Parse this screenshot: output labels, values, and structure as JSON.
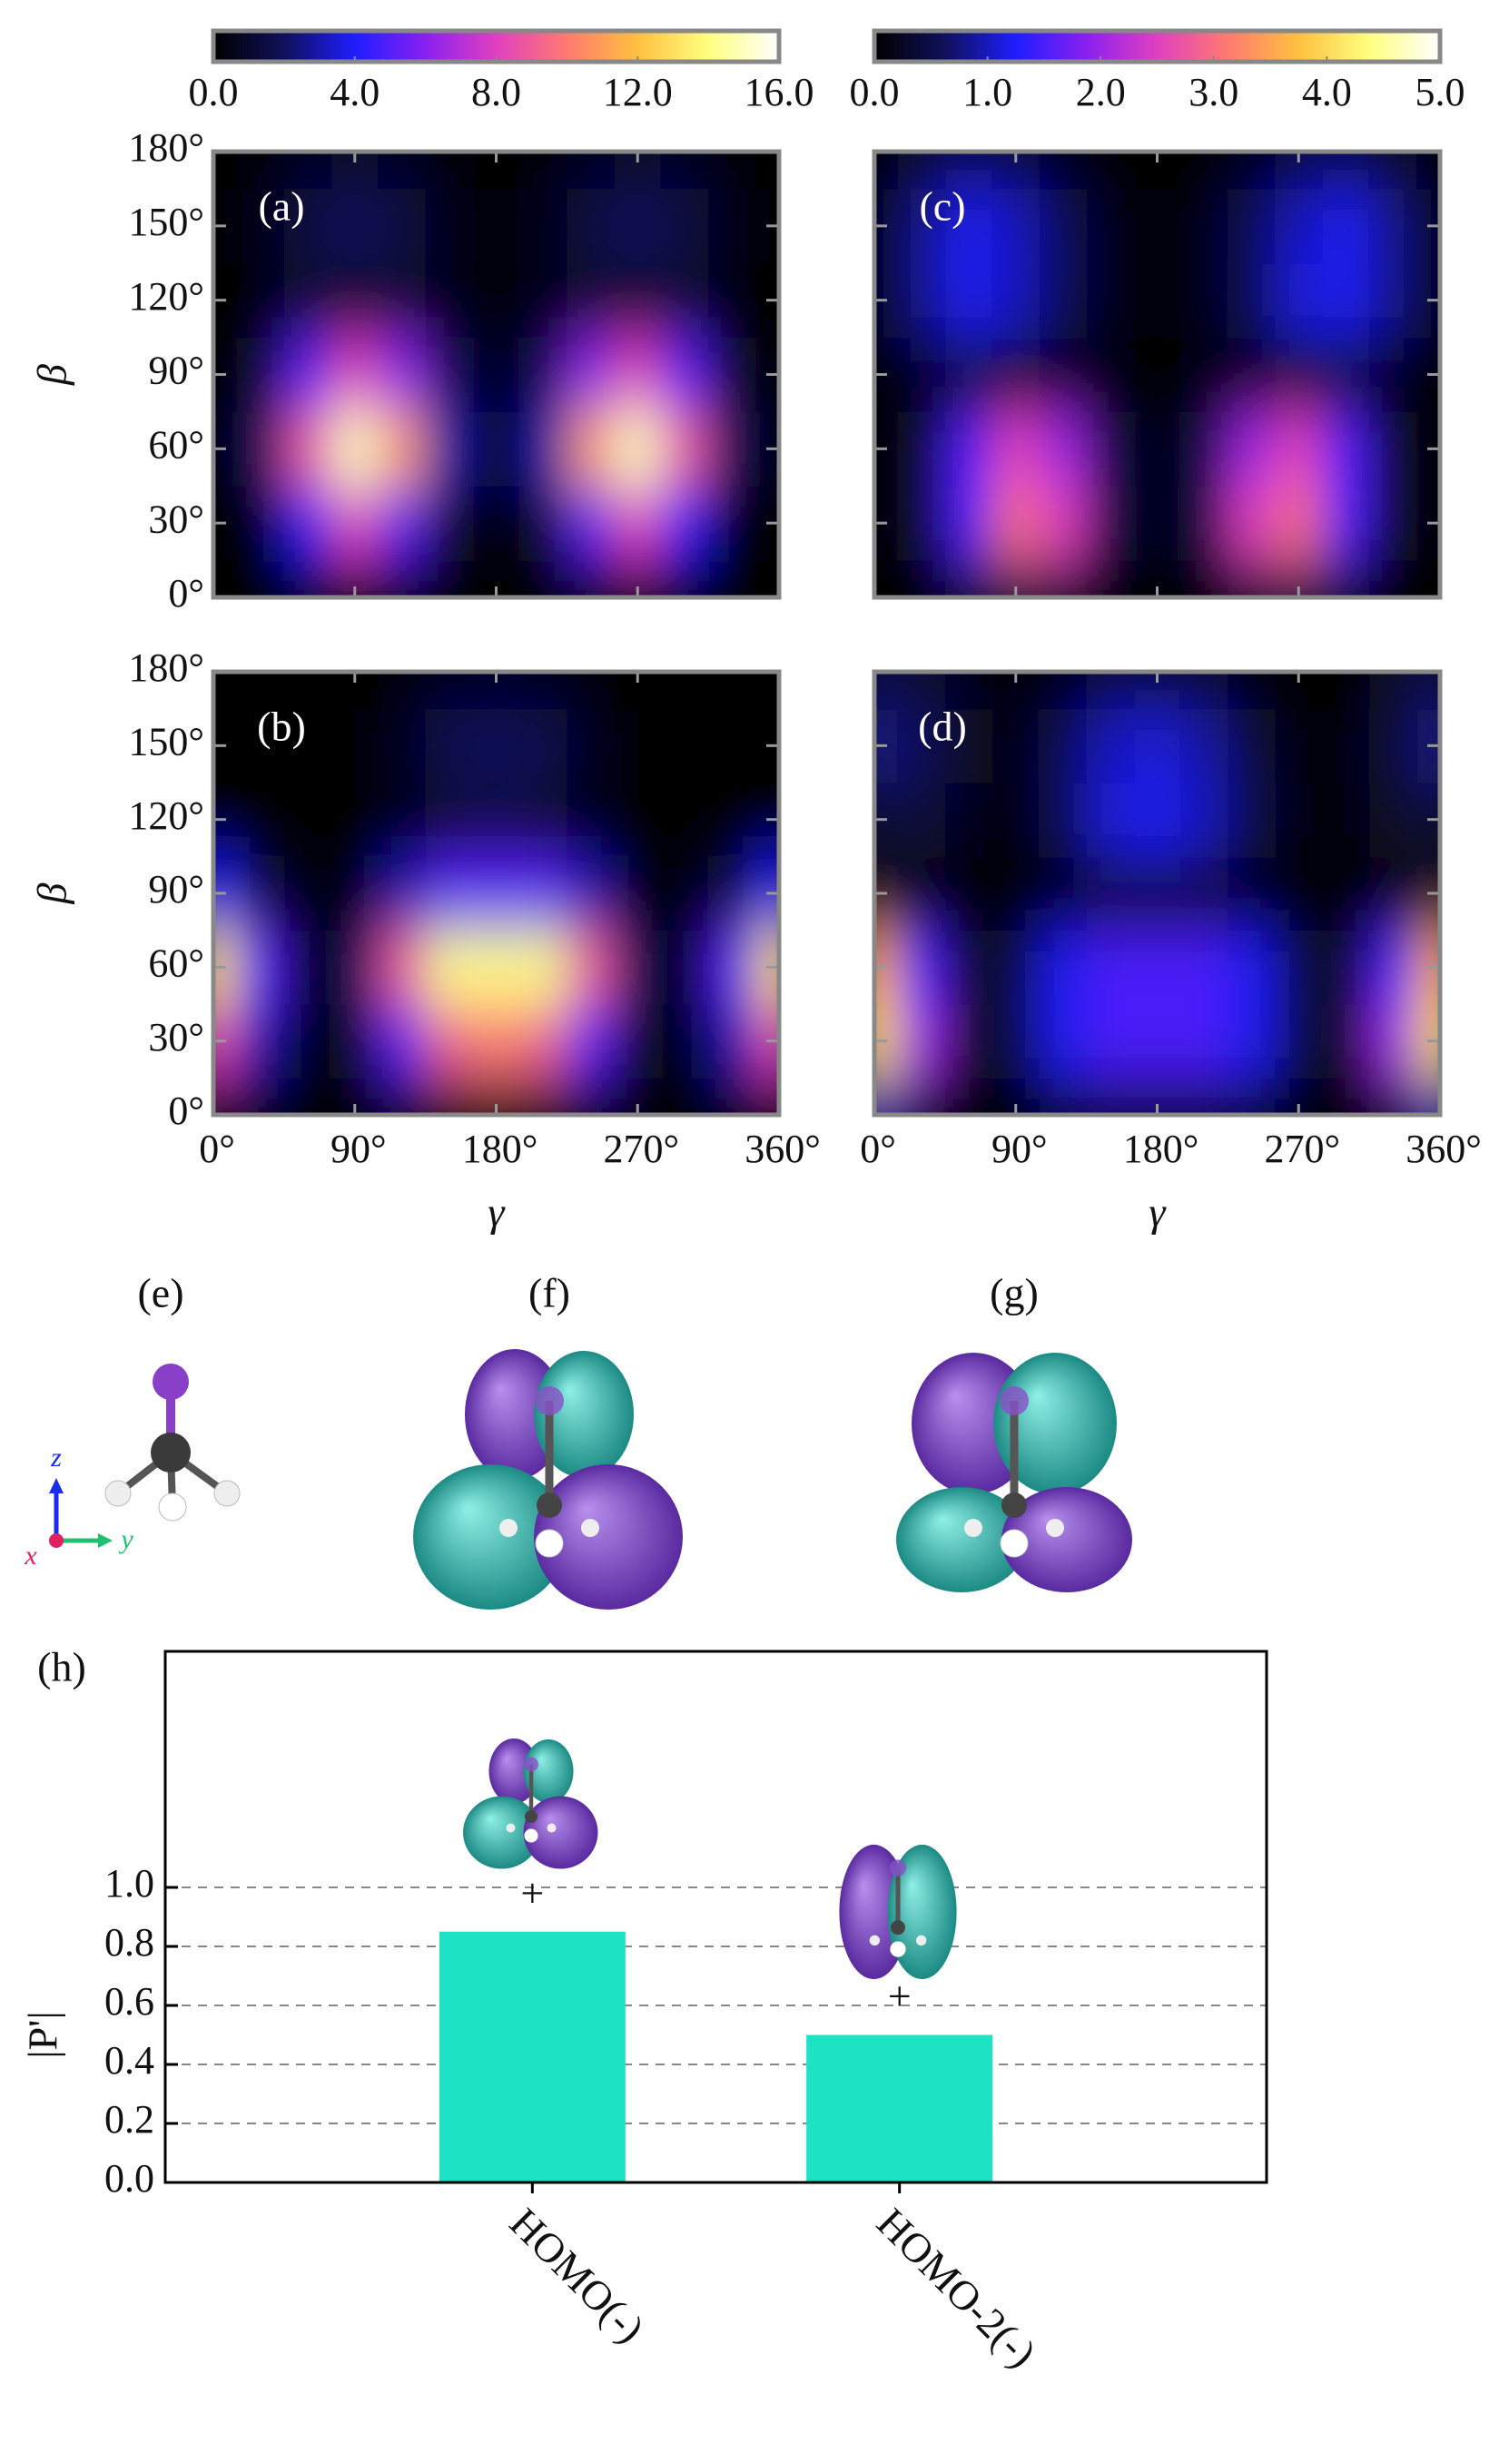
{
  "chart_data": [
    {
      "type": "heatmap",
      "label": "(a)",
      "x": [
        0,
        30,
        60,
        90,
        120,
        150,
        180,
        210,
        240,
        270,
        300,
        330,
        360
      ],
      "y": [
        0,
        30,
        60,
        90,
        120,
        150,
        180
      ],
      "z": [
        [
          0,
          0,
          0,
          0,
          0,
          0,
          0,
          0,
          0,
          0,
          0,
          0,
          0
        ],
        [
          0,
          0.5,
          4,
          8,
          5,
          1,
          0,
          1,
          5,
          8,
          4,
          0.5,
          0
        ],
        [
          0,
          2,
          9,
          15,
          11,
          3,
          0.5,
          3,
          11,
          15,
          9,
          2,
          0
        ],
        [
          0,
          1,
          5,
          8,
          6,
          2,
          0.3,
          2,
          6,
          8,
          5,
          1,
          0
        ],
        [
          0,
          0.3,
          1,
          1,
          1,
          0.5,
          0.2,
          0.5,
          1,
          1,
          1,
          0.3,
          0
        ],
        [
          0,
          0.5,
          1.5,
          2,
          1.5,
          0.5,
          0.2,
          0.5,
          1.5,
          2,
          1.5,
          0.5,
          0
        ],
        [
          0,
          0.3,
          0.8,
          1,
          0.8,
          0.3,
          0,
          0.3,
          0.8,
          1,
          0.8,
          0.3,
          0
        ]
      ],
      "zlim": [
        0,
        16
      ],
      "xlim": [
        0,
        360
      ],
      "ylim": [
        0,
        180
      ],
      "xticks": [
        0,
        90,
        180,
        270,
        360
      ],
      "yticks": [
        {
          "value": 0,
          "label": "0°"
        },
        {
          "value": 30,
          "label": "30°"
        },
        {
          "value": 60,
          "label": "60°"
        },
        {
          "value": 90,
          "label": "90°"
        },
        {
          "value": 120,
          "label": "120°"
        },
        {
          "value": 150,
          "label": "150°"
        },
        {
          "value": 180,
          "label": "180°"
        }
      ],
      "ylabel": "β",
      "colorbar_ticks": [
        {
          "value": 0,
          "label": "0.0"
        },
        {
          "value": 4,
          "label": "4.0"
        },
        {
          "value": 8,
          "label": "8.0"
        },
        {
          "value": 12,
          "label": "12.0"
        },
        {
          "value": 16,
          "label": "16.0"
        }
      ],
      "colormap": [
        "#000000",
        "#10105a",
        "#1e1eff",
        "#8a20f0",
        "#e040c0",
        "#ff7a70",
        "#ffc040",
        "#ffff80",
        "#ffffff"
      ]
    },
    {
      "type": "heatmap",
      "label": "(b)",
      "x": [
        0,
        30,
        60,
        90,
        120,
        150,
        180,
        210,
        240,
        270,
        300,
        330,
        360
      ],
      "y": [
        0,
        30,
        60,
        90,
        120,
        150,
        180
      ],
      "z": [
        [
          0.5,
          0,
          0,
          0,
          0,
          0,
          0,
          0,
          0,
          0,
          0,
          0,
          0.5
        ],
        [
          8,
          3,
          0.5,
          1,
          5,
          9,
          10,
          9,
          5,
          1,
          0.5,
          3,
          8
        ],
        [
          13,
          5,
          0.5,
          2,
          9,
          14,
          14,
          14,
          9,
          2,
          0.5,
          5,
          13
        ],
        [
          4,
          1.5,
          0.2,
          0.5,
          3,
          5,
          5,
          5,
          3,
          0.5,
          0.2,
          1.5,
          4
        ],
        [
          0,
          0,
          0,
          0,
          0.5,
          1,
          1.5,
          1,
          0.5,
          0,
          0,
          0,
          0
        ],
        [
          0,
          0,
          0,
          0,
          0.8,
          1.8,
          2,
          1.8,
          0.8,
          0,
          0,
          0,
          0
        ],
        [
          0,
          0,
          0,
          0,
          0.3,
          0.6,
          0.8,
          0.6,
          0.3,
          0,
          0,
          0,
          0
        ]
      ],
      "zlim": [
        0,
        16
      ],
      "xlim": [
        0,
        360
      ],
      "ylim": [
        0,
        180
      ],
      "xticks": [
        {
          "value": 0,
          "label": "0°"
        },
        {
          "value": 90,
          "label": "90°"
        },
        {
          "value": 180,
          "label": "180°"
        },
        {
          "value": 270,
          "label": "270°"
        },
        {
          "value": 360,
          "label": "360°"
        }
      ],
      "yticks": [
        {
          "value": 0,
          "label": "0°"
        },
        {
          "value": 30,
          "label": "30°"
        },
        {
          "value": 60,
          "label": "60°"
        },
        {
          "value": 90,
          "label": "90°"
        },
        {
          "value": 120,
          "label": "120°"
        },
        {
          "value": 150,
          "label": "150°"
        },
        {
          "value": 180,
          "label": "180°"
        }
      ],
      "xlabel": "γ",
      "ylabel": "β",
      "colormap": [
        "#000000",
        "#10105a",
        "#1e1eff",
        "#8a20f0",
        "#e040c0",
        "#ff7a70",
        "#ffc040",
        "#ffff80",
        "#ffffff"
      ]
    },
    {
      "type": "heatmap",
      "label": "(c)",
      "x": [
        0,
        30,
        60,
        90,
        120,
        150,
        180,
        210,
        240,
        270,
        300,
        330,
        360
      ],
      "y": [
        0,
        30,
        60,
        90,
        120,
        150,
        180
      ],
      "z": [
        [
          0,
          0,
          0.3,
          0.5,
          0.3,
          0,
          0,
          0,
          0.3,
          0.5,
          0.3,
          0,
          0
        ],
        [
          0,
          0.3,
          1.5,
          3,
          2.5,
          0.5,
          0,
          0.5,
          2.5,
          3,
          1.5,
          0.3,
          0
        ],
        [
          0,
          0.3,
          1.5,
          2.5,
          2,
          0.5,
          0,
          0.5,
          2,
          2.5,
          1.5,
          0.3,
          0
        ],
        [
          0,
          0.2,
          0.3,
          0.3,
          0.2,
          0.1,
          0,
          0.1,
          0.2,
          0.3,
          0.3,
          0.2,
          0
        ],
        [
          0,
          0.8,
          1.2,
          1,
          0.6,
          0.2,
          0,
          0.2,
          0.6,
          1.1,
          1.2,
          0.8,
          0
        ],
        [
          0,
          0.8,
          1.2,
          1,
          0.6,
          0.2,
          0,
          0.2,
          0.6,
          1,
          1.2,
          0.8,
          0
        ],
        [
          0,
          0.3,
          0.5,
          0.4,
          0.2,
          0,
          0,
          0,
          0.2,
          0.4,
          0.5,
          0.3,
          0
        ]
      ],
      "zlim": [
        0,
        5
      ],
      "xlim": [
        0,
        360
      ],
      "ylim": [
        0,
        180
      ],
      "xticks": [
        0,
        90,
        180,
        270,
        360
      ],
      "yticks": [
        0,
        30,
        60,
        90,
        120,
        150,
        180
      ],
      "colorbar_ticks": [
        {
          "value": 0,
          "label": "0.0"
        },
        {
          "value": 1,
          "label": "1.0"
        },
        {
          "value": 2,
          "label": "2.0"
        },
        {
          "value": 3,
          "label": "3.0"
        },
        {
          "value": 4,
          "label": "4.0"
        },
        {
          "value": 5,
          "label": "5.0"
        }
      ],
      "colormap": [
        "#000000",
        "#10105a",
        "#1e1eff",
        "#8a20f0",
        "#e040c0",
        "#ff7a70",
        "#ffc040",
        "#ffff80",
        "#ffffff"
      ]
    },
    {
      "type": "heatmap",
      "label": "(d)",
      "x": [
        0,
        30,
        60,
        90,
        120,
        150,
        180,
        210,
        240,
        270,
        300,
        330,
        360
      ],
      "y": [
        0,
        30,
        60,
        90,
        120,
        150,
        180
      ],
      "z": [
        [
          1,
          0.3,
          0,
          0,
          0.3,
          0.5,
          0.5,
          0.5,
          0.3,
          0,
          0,
          0.3,
          1
        ],
        [
          4,
          2,
          0.3,
          0.5,
          1.2,
          1.5,
          1.5,
          1.5,
          1.2,
          0.5,
          0.3,
          2,
          4
        ],
        [
          3.5,
          1.5,
          0.3,
          0.5,
          1.2,
          1.5,
          1.5,
          1.5,
          1.2,
          0.5,
          0.3,
          1.5,
          3.5
        ],
        [
          0.3,
          0.1,
          0,
          0,
          0.1,
          0.3,
          0.3,
          0.3,
          0.1,
          0,
          0,
          0.1,
          0.3
        ],
        [
          0.3,
          0.4,
          0.2,
          0.1,
          0.6,
          1.1,
          1.2,
          1,
          0.5,
          0.1,
          0.1,
          0.3,
          0.3
        ],
        [
          0.8,
          0.6,
          0.3,
          0.1,
          0.6,
          1,
          1.1,
          0.9,
          0.4,
          0.1,
          0.1,
          0.4,
          0.8
        ],
        [
          0.5,
          0.4,
          0.2,
          0,
          0.2,
          0.4,
          0.4,
          0.3,
          0.1,
          0,
          0,
          0.3,
          0.5
        ]
      ],
      "zlim": [
        0,
        5
      ],
      "xlim": [
        0,
        360
      ],
      "ylim": [
        0,
        180
      ],
      "xticks": [
        {
          "value": 0,
          "label": "0°"
        },
        {
          "value": 90,
          "label": "90°"
        },
        {
          "value": 180,
          "label": "180°"
        },
        {
          "value": 270,
          "label": "270°"
        },
        {
          "value": 360,
          "label": "360°"
        }
      ],
      "yticks": [
        0,
        30,
        60,
        90,
        120,
        150,
        180
      ],
      "xlabel": "γ",
      "colormap": [
        "#000000",
        "#10105a",
        "#1e1eff",
        "#8a20f0",
        "#e040c0",
        "#ff7a70",
        "#ffc040",
        "#ffff80",
        "#ffffff"
      ]
    },
    {
      "type": "bar",
      "label": "(h)",
      "categories": [
        "HOMO(-)",
        "HOMO-2(-)"
      ],
      "values": [
        0.85,
        0.5
      ],
      "color": "#1de3c4",
      "ylim": [
        0,
        1.8
      ],
      "yticks": [
        {
          "value": 0,
          "label": "0.0"
        },
        {
          "value": 0.2,
          "label": "0.2"
        },
        {
          "value": 0.4,
          "label": "0.4"
        },
        {
          "value": 0.6,
          "label": "0.6"
        },
        {
          "value": 0.8,
          "label": "0.8"
        },
        {
          "value": 1.0,
          "label": "1.0"
        }
      ],
      "ylabel": "|P'|",
      "grid": true,
      "annotations": [
        "+",
        "+"
      ]
    }
  ],
  "panels": [
    {
      "label": "(e)",
      "axes": [
        "x",
        "y",
        "z"
      ]
    },
    {
      "label": "(f)"
    },
    {
      "label": "(g)"
    }
  ]
}
